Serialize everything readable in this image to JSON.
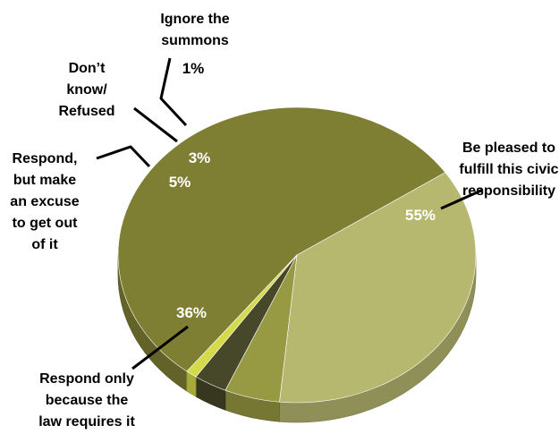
{
  "chart_data": {
    "type": "pie",
    "title": "",
    "slices": [
      {
        "label": "Be pleased to fulfill this civic responsibility",
        "value": 55,
        "value_label": "55%",
        "color": "#7f7f34"
      },
      {
        "label": "Respond only because the law requires it",
        "value": 36,
        "value_label": "36%",
        "color": "#b7b870"
      },
      {
        "label": "Respond, but make an excuse to get out of it",
        "value": 5,
        "value_label": "5%",
        "color": "#989943"
      },
      {
        "label": "Don’t know/ Refused",
        "value": 3,
        "value_label": "3%",
        "color": "#474729"
      },
      {
        "label": "Ignore the summons",
        "value": 1,
        "value_label": "1%",
        "color": "#d4da4c"
      }
    ]
  }
}
